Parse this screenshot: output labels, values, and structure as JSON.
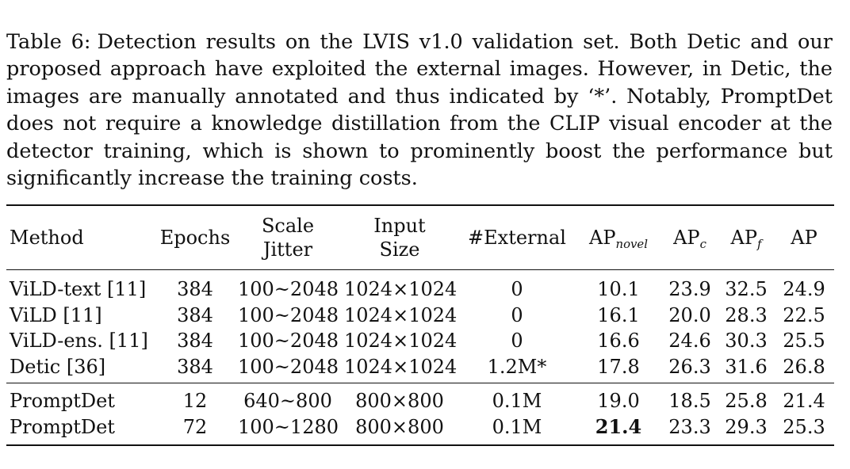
{
  "caption": {
    "label": "Table 6:",
    "text": "Detection results on the LVIS v1.0 validation set. Both Detic and our proposed approach have exploited the external images. However, in Detic, the images are manually annotated and thus indicated by ‘*’. Notably, PromptDet does not require a knowledge distillation from the CLIP visual encoder at the detector training, which is shown to prominently boost the performance but significantly increase the training costs."
  },
  "table": {
    "headers": {
      "method": "Method",
      "epochs": "Epochs",
      "scale_jitter_1": "Scale",
      "scale_jitter_2": "Jitter",
      "input_size_1": "Input",
      "input_size_2": "Size",
      "external": "#External",
      "ap_novel_base": "AP",
      "ap_novel_sub": "novel",
      "ap_c_base": "AP",
      "ap_c_sub": "c",
      "ap_f_base": "AP",
      "ap_f_sub": "f",
      "ap": "AP"
    },
    "group1": [
      {
        "method": "ViLD-text [11]",
        "epochs": "384",
        "scale_jitter": "100~2048",
        "input_size": "1024×1024",
        "external": "0",
        "ap_novel": "10.1",
        "ap_c": "23.9",
        "ap_f": "32.5",
        "ap": "24.9"
      },
      {
        "method": "ViLD [11]",
        "epochs": "384",
        "scale_jitter": "100~2048",
        "input_size": "1024×1024",
        "external": "0",
        "ap_novel": "16.1",
        "ap_c": "20.0",
        "ap_f": "28.3",
        "ap": "22.5"
      },
      {
        "method": "ViLD-ens. [11]",
        "epochs": "384",
        "scale_jitter": "100~2048",
        "input_size": "1024×1024",
        "external": "0",
        "ap_novel": "16.6",
        "ap_c": "24.6",
        "ap_f": "30.3",
        "ap": "25.5"
      },
      {
        "method": "Detic [36]",
        "epochs": "384",
        "scale_jitter": "100~2048",
        "input_size": "1024×1024",
        "external": "1.2M*",
        "ap_novel": "17.8",
        "ap_c": "26.3",
        "ap_f": "31.6",
        "ap": "26.8"
      }
    ],
    "group2": [
      {
        "method": "PromptDet",
        "epochs": "12",
        "scale_jitter": "640~800",
        "input_size": "800×800",
        "external": "0.1M",
        "ap_novel": "19.0",
        "ap_c": "18.5",
        "ap_f": "25.8",
        "ap": "21.4"
      },
      {
        "method": "PromptDet",
        "epochs": "72",
        "scale_jitter": "100~1280",
        "input_size": "800×800",
        "external": "0.1M",
        "ap_novel": "21.4",
        "ap_c": "23.3",
        "ap_f": "29.3",
        "ap": "25.3"
      }
    ]
  }
}
